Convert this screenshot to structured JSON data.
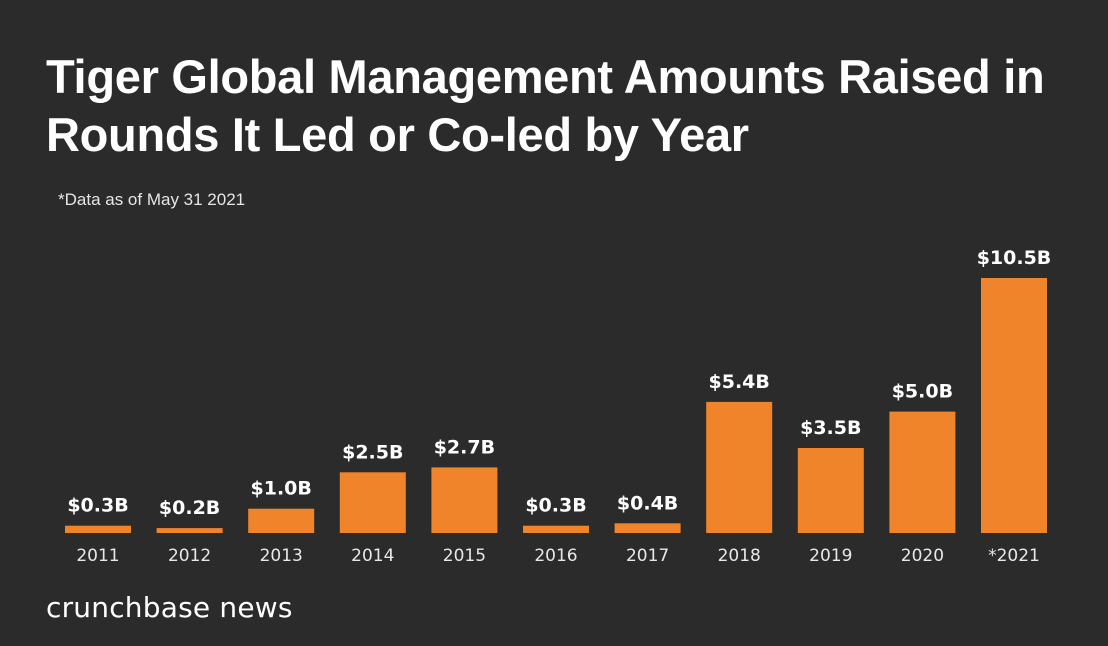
{
  "header": {
    "title": "Tiger Global Management Amounts Raised in Rounds It Led or Co-led by Year",
    "note": "*Data as of May 31 2021"
  },
  "footer": {
    "brand": "crunchbase news"
  },
  "colors": {
    "background": "#2b2b2b",
    "bar": "#f0842b",
    "text": "#ffffff"
  },
  "chart_data": {
    "type": "bar",
    "title": "Tiger Global Management Amounts Raised in Rounds It Led or Co-led by Year",
    "subtitle": "*Data as of May 31 2021",
    "xlabel": "",
    "ylabel": "",
    "categories": [
      "2011",
      "2012",
      "2013",
      "2014",
      "2015",
      "2016",
      "2017",
      "2018",
      "2019",
      "2020",
      "*2021"
    ],
    "values": [
      0.3,
      0.2,
      1.0,
      2.5,
      2.7,
      0.3,
      0.4,
      5.4,
      3.5,
      5.0,
      10.5
    ],
    "value_labels": [
      "$0.3B",
      "$0.2B",
      "$1.0B",
      "$2.5B",
      "$2.7B",
      "$0.3B",
      "$0.4B",
      "$5.4B",
      "$3.5B",
      "$5.0B",
      "$10.5B"
    ],
    "unit": "billions USD",
    "ylim": [
      0,
      10.5
    ],
    "grid": false,
    "legend": "none"
  }
}
